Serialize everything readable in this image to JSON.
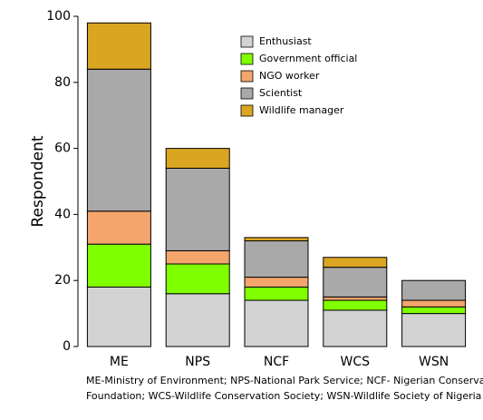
{
  "chart_data": {
    "type": "stacked_bar",
    "ylabel": "Respondent",
    "categories": [
      "ME",
      "NPS",
      "NCF",
      "WCS",
      "WSN"
    ],
    "series": [
      {
        "name": "Enthusiast",
        "color": "#d3d3d3",
        "values": [
          18,
          16,
          14,
          11,
          10
        ]
      },
      {
        "name": "Government official",
        "color": "#80ff00",
        "values": [
          13,
          9,
          4,
          3,
          2
        ]
      },
      {
        "name": "NGO worker",
        "color": "#f4a56c",
        "values": [
          10,
          4,
          3,
          1,
          2
        ]
      },
      {
        "name": "Scientist",
        "color": "#a9a9a9",
        "values": [
          43,
          25,
          11,
          9,
          6
        ]
      },
      {
        "name": "Wildlife manager",
        "color": "#daa520",
        "values": [
          14,
          6,
          1,
          3,
          0
        ]
      }
    ],
    "ylim": [
      0,
      100
    ],
    "yticks": [
      0,
      20,
      40,
      60,
      80,
      100
    ],
    "legend": "upper-right",
    "caption": [
      "ME-Ministry of Environment; NPS-National Park Service; NCF- Nigerian Conservation",
      "Foundation; WCS-Wildlife Conservation Society; WSN-Wildlife Society of Nigeria"
    ]
  }
}
